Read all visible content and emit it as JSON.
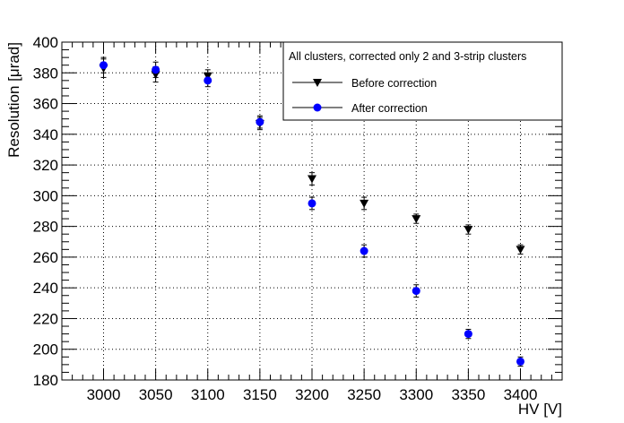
{
  "chart_data": {
    "type": "scatter",
    "xlabel": "HV [V]",
    "ylabel": "Resolution [μrad]",
    "xlim": [
      2960,
      3440
    ],
    "ylim": [
      180,
      400
    ],
    "x_ticks": [
      3000,
      3050,
      3100,
      3150,
      3200,
      3250,
      3300,
      3350,
      3400
    ],
    "y_ticks": [
      180,
      200,
      220,
      240,
      260,
      280,
      300,
      320,
      340,
      360,
      380,
      400
    ],
    "grid": true,
    "legend": {
      "position": "top-right",
      "header": "All clusters, corrected only 2 and 3-strip clusters"
    },
    "series": [
      {
        "name": "Before correction",
        "marker": "triangle-down",
        "color": "#000000",
        "x": [
          3000,
          3050,
          3100,
          3150,
          3200,
          3250,
          3300,
          3350,
          3400
        ],
        "y": [
          383,
          379,
          378,
          347,
          311,
          295,
          285,
          278,
          265
        ],
        "err": [
          6,
          5,
          4,
          4,
          4,
          4,
          3,
          3,
          3
        ]
      },
      {
        "name": "After correction",
        "marker": "circle",
        "color": "#0000ff",
        "x": [
          3000,
          3050,
          3100,
          3150,
          3200,
          3250,
          3300,
          3350,
          3400
        ],
        "y": [
          385,
          382,
          375,
          348,
          295,
          264,
          238,
          210,
          192
        ],
        "err": [
          5,
          5,
          4,
          4,
          4,
          4,
          4,
          3,
          3
        ]
      }
    ]
  }
}
